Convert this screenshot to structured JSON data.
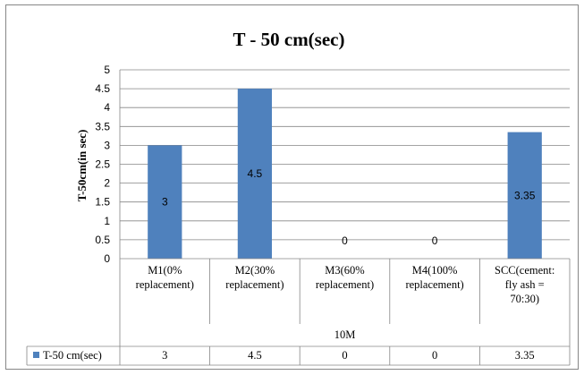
{
  "chart_data": {
    "type": "bar",
    "title": "T - 50 cm(sec)",
    "ylabel": "T-50cm(in sec)",
    "xlabel": "",
    "group_label": "10M",
    "ylim": [
      0,
      5
    ],
    "yticks": [
      "0",
      "0.5",
      "1",
      "1.5",
      "2",
      "2.5",
      "3",
      "3.5",
      "4",
      "4.5",
      "5"
    ],
    "grid": true,
    "categories": [
      [
        "M1(0%",
        "replacement)"
      ],
      [
        "M2(30%",
        "replacement)"
      ],
      [
        "M3(60%",
        "replacement)"
      ],
      [
        "M4(100%",
        "replacement)"
      ],
      [
        "SCC(cement:",
        "fly ash =",
        "70:30)"
      ]
    ],
    "series": [
      {
        "name": "T-50 cm(sec)",
        "color": "#4f81bd",
        "values": [
          3,
          4.5,
          0,
          0,
          3.35
        ],
        "labels": [
          "3",
          "4.5",
          "0",
          "0",
          "3.35"
        ]
      }
    ],
    "legend": "data-table"
  }
}
